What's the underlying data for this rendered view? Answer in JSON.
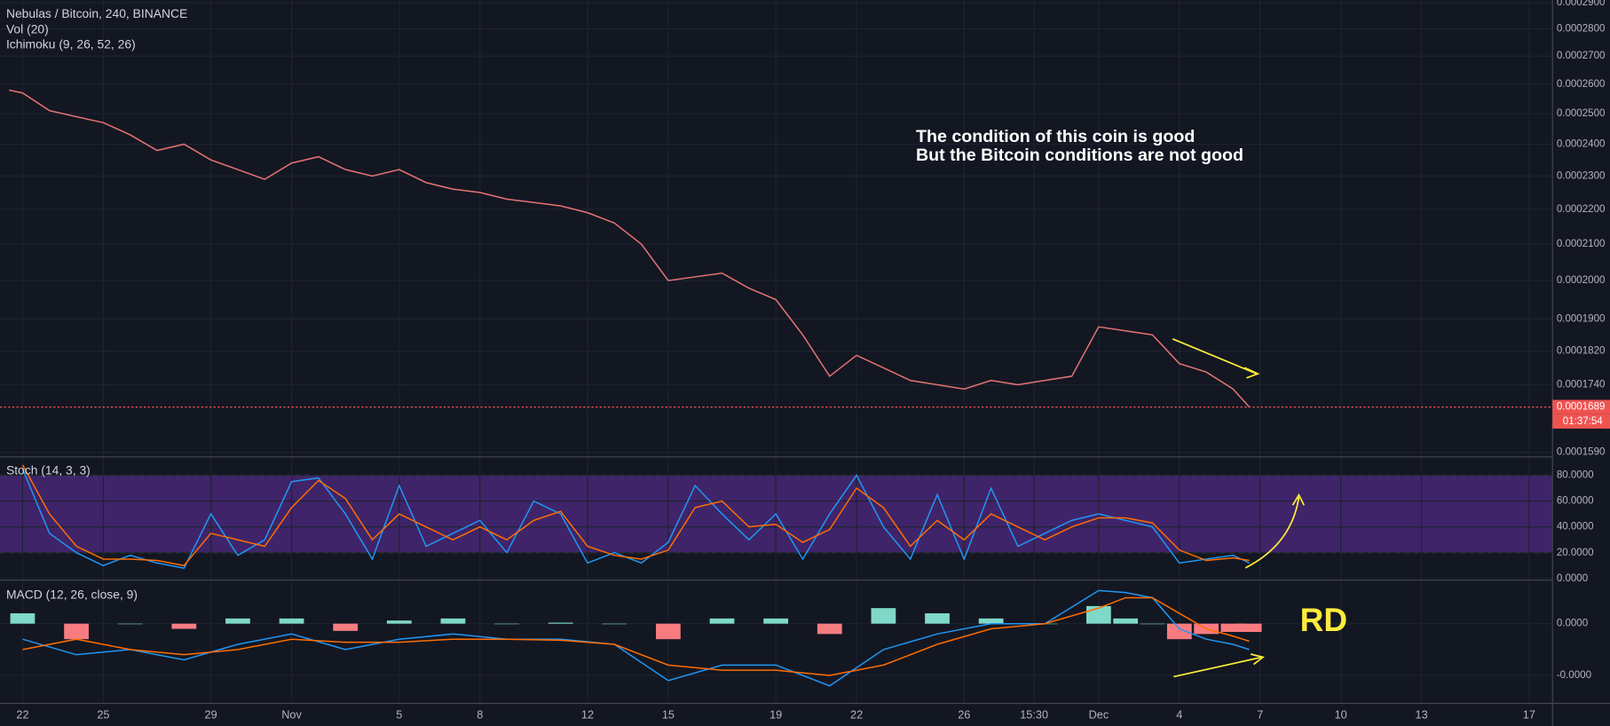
{
  "chart_data": [
    {
      "type": "line",
      "title": "Nebulas / Bitcoin, 240, BINANCE",
      "indicators": [
        "Vol (20)",
        "Ichimoku (9, 26, 52, 26)"
      ],
      "annotations": [
        "The condition of this coin is good",
        "But the Bitcoin conditions are not good"
      ],
      "log": true,
      "grid": true,
      "xlim": [
        -0.84,
        56.87
      ],
      "ylim": [
        0.000158,
        0.000291
      ],
      "yticks": [
        {
          "value": 0.00029,
          "label": "0.0002900"
        },
        {
          "value": 0.00028,
          "label": "0.0002800"
        },
        {
          "value": 0.00027,
          "label": "0.0002700"
        },
        {
          "value": 0.00026,
          "label": "0.0002600"
        },
        {
          "value": 0.00025,
          "label": "0.0002500"
        },
        {
          "value": 0.00024,
          "label": "0.0002400"
        },
        {
          "value": 0.00023,
          "label": "0.0002300"
        },
        {
          "value": 0.00022,
          "label": "0.0002200"
        },
        {
          "value": 0.00021,
          "label": "0.0002100"
        },
        {
          "value": 0.0002,
          "label": "0.0002000"
        },
        {
          "value": 0.00019,
          "label": "0.0001900"
        },
        {
          "value": 0.000182,
          "label": "0.0001820"
        },
        {
          "value": 0.000174,
          "label": "0.0001740"
        },
        {
          "value": 0.000159,
          "label": "0.0001590"
        }
      ],
      "last_price": 0.0001689,
      "last_price_color": "#ef5350",
      "countdown": "01:37:54",
      "x": [
        -0.5,
        0,
        1,
        2,
        3,
        4,
        5,
        6,
        7,
        8,
        9,
        10,
        11,
        12,
        13,
        14,
        15,
        16,
        17,
        18,
        19,
        20,
        21,
        22,
        23,
        24,
        25,
        26,
        27,
        28,
        29,
        30,
        31,
        32,
        33,
        34,
        35,
        36,
        37,
        38,
        39,
        40,
        41,
        42,
        43,
        44,
        45,
        45.6
      ],
      "series": [
        {
          "color": "#e57373",
          "values": [
            0.000258,
            0.000257,
            0.000251,
            0.000249,
            0.000247,
            0.000243,
            0.000238,
            0.00024,
            0.000235,
            0.000232,
            0.000229,
            0.000234,
            0.000236,
            0.000232,
            0.00023,
            0.000232,
            0.000228,
            0.000226,
            0.000225,
            0.000223,
            0.000222,
            0.000221,
            0.000219,
            0.000216,
            0.00021,
            0.0002,
            0.000201,
            0.000202,
            0.000198,
            0.000195,
            0.000186,
            0.000176,
            0.000181,
            0.000178,
            0.000175,
            0.000174,
            0.000173,
            0.000175,
            0.000174,
            0.000175,
            0.000176,
            0.000188,
            0.000187,
            0.000186,
            0.000179,
            0.000177,
            0.000173,
            0.0001689
          ]
        }
      ]
    },
    {
      "type": "line",
      "title": "Stoch (14, 3, 3)",
      "grid": true,
      "xlim": [
        -0.84,
        56.87
      ],
      "ylim": [
        -0.5,
        94.2
      ],
      "yticks": [
        {
          "value": 80,
          "label": "80.0000"
        },
        {
          "value": 60,
          "label": "60.0000"
        },
        {
          "value": 40,
          "label": "40.0000"
        },
        {
          "value": 20,
          "label": "20.0000"
        },
        {
          "value": 0,
          "label": "0.0000"
        }
      ],
      "band": [
        20,
        80
      ],
      "band_color": "#3f2469",
      "x": [
        0,
        1,
        2,
        3,
        4,
        5,
        6,
        7,
        8,
        9,
        10,
        11,
        12,
        13,
        14,
        15,
        16,
        17,
        18,
        19,
        20,
        21,
        22,
        23,
        24,
        25,
        26,
        27,
        28,
        29,
        30,
        31,
        32,
        33,
        34,
        35,
        36,
        37,
        38,
        39,
        40,
        41,
        42,
        43,
        44,
        45,
        45.6
      ],
      "series": [
        {
          "color": "#2196f3",
          "values": [
            85,
            35,
            20,
            10,
            18,
            12,
            8,
            50,
            18,
            30,
            75,
            78,
            50,
            15,
            72,
            25,
            35,
            45,
            20,
            60,
            50,
            12,
            20,
            12,
            28,
            72,
            50,
            30,
            50,
            15,
            50,
            80,
            40,
            15,
            65,
            15,
            70,
            25,
            35,
            45,
            50,
            45,
            40,
            12,
            15,
            18,
            12
          ]
        },
        {
          "color": "#ff6d00",
          "values": [
            88,
            50,
            25,
            15,
            15,
            14,
            10,
            35,
            30,
            25,
            55,
            76,
            62,
            30,
            50,
            40,
            30,
            40,
            30,
            45,
            52,
            25,
            18,
            15,
            22,
            55,
            60,
            40,
            42,
            28,
            38,
            70,
            55,
            25,
            45,
            30,
            50,
            40,
            30,
            40,
            47,
            47,
            43,
            22,
            14,
            16,
            14
          ]
        }
      ]
    },
    {
      "type": "line",
      "title": "MACD (12, 26, close, 9)",
      "annotations": [
        "RD"
      ],
      "grid": true,
      "xlim": [
        -0.84,
        56.87
      ],
      "ylim": [
        -7.7e-06,
        4.2e-06
      ],
      "yticks": [
        {
          "value": 0,
          "label": "0.0000"
        },
        {
          "value": -5e-06,
          "label": "-0.0000"
        }
      ],
      "xticks": [
        {
          "value": 0,
          "label": "22"
        },
        {
          "value": 3,
          "label": "25"
        },
        {
          "value": 7,
          "label": "29"
        },
        {
          "value": 10,
          "label": "Nov"
        },
        {
          "value": 14,
          "label": "5"
        },
        {
          "value": 17,
          "label": "8"
        },
        {
          "value": 21,
          "label": "12"
        },
        {
          "value": 24,
          "label": "15"
        },
        {
          "value": 28,
          "label": "19"
        },
        {
          "value": 31,
          "label": "22"
        },
        {
          "value": 35,
          "label": "26"
        },
        {
          "value": 37.6,
          "label": "15:30"
        },
        {
          "value": 40,
          "label": "Dec"
        },
        {
          "value": 43,
          "label": "4"
        },
        {
          "value": 46,
          "label": "7"
        },
        {
          "value": 49,
          "label": "10"
        },
        {
          "value": 52,
          "label": "13"
        },
        {
          "value": 56,
          "label": "17"
        }
      ],
      "x": [
        0,
        2,
        4,
        6,
        8,
        10,
        12,
        14,
        16,
        18,
        20,
        22,
        24,
        26,
        28,
        30,
        32,
        34,
        36,
        38,
        40,
        41,
        42,
        43,
        44,
        45,
        45.6
      ],
      "series": [
        {
          "type": "bar",
          "colors": [
            "#7fd8c8",
            "#f77c80"
          ],
          "values": [
            1e-06,
            -1.5e-06,
            0,
            -5e-07,
            5e-07,
            5e-07,
            -7e-07,
            3e-07,
            5e-07,
            0,
            1e-07,
            0,
            -1.5e-06,
            5e-07,
            5e-07,
            -1e-06,
            1.5e-06,
            1e-06,
            5e-07,
            0,
            1.7e-06,
            5e-07,
            0,
            -1.5e-06,
            -1e-06,
            -8e-07,
            -8e-07
          ]
        },
        {
          "color": "#2196f3",
          "values": [
            -1.5e-06,
            -3e-06,
            -2.5e-06,
            -3.5e-06,
            -2e-06,
            -1e-06,
            -2.5e-06,
            -1.5e-06,
            -1e-06,
            -1.5e-06,
            -1.5e-06,
            -2e-06,
            -5.5e-06,
            -4e-06,
            -4e-06,
            -6e-06,
            -2.5e-06,
            -1e-06,
            0,
            0,
            3.2e-06,
            3e-06,
            2.5e-06,
            -5e-07,
            -1.5e-06,
            -2e-06,
            -2.5e-06
          ]
        },
        {
          "color": "#ff6d00",
          "values": [
            -2.5e-06,
            -1.5e-06,
            -2.5e-06,
            -3e-06,
            -2.5e-06,
            -1.5e-06,
            -1.8e-06,
            -1.8e-06,
            -1.5e-06,
            -1.5e-06,
            -1.6e-06,
            -2e-06,
            -4e-06,
            -4.5e-06,
            -4.5e-06,
            -5e-06,
            -4e-06,
            -2e-06,
            -5e-07,
            0,
            1.5e-06,
            2.5e-06,
            2.5e-06,
            1e-06,
            -5e-07,
            -1.2e-06,
            -1.7e-06
          ]
        }
      ]
    }
  ]
}
